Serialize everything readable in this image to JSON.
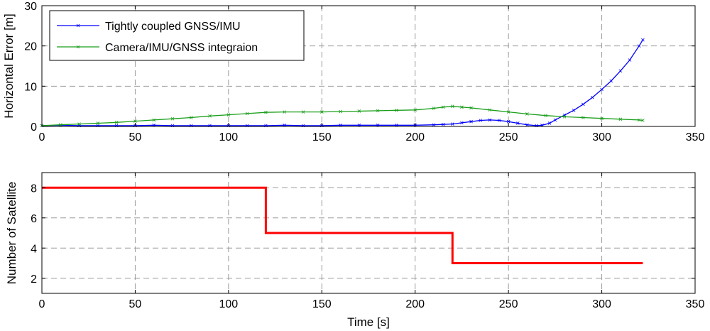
{
  "chart_data": [
    {
      "type": "line",
      "title": "",
      "xlabel": "",
      "ylabel": "Horizontal Error [m]",
      "xlim": [
        0,
        350
      ],
      "ylim": [
        0,
        30
      ],
      "xticks": [
        0,
        50,
        100,
        150,
        200,
        250,
        300,
        350
      ],
      "yticks": [
        0,
        10,
        20,
        30
      ],
      "grid": true,
      "legend_position": "top-left",
      "series": [
        {
          "name": "Tightly coupled GNSS/IMU",
          "color": "#0000ff",
          "marker": "x",
          "x": [
            0,
            10,
            20,
            30,
            40,
            50,
            60,
            70,
            80,
            90,
            100,
            110,
            120,
            130,
            140,
            150,
            160,
            170,
            180,
            190,
            200,
            210,
            215,
            220,
            225,
            230,
            235,
            240,
            245,
            250,
            255,
            260,
            265,
            268,
            272,
            275,
            280,
            285,
            290,
            295,
            300,
            305,
            310,
            315,
            320,
            322
          ],
          "y": [
            0.2,
            0.3,
            0.2,
            0.2,
            0.2,
            0.2,
            0.3,
            0.2,
            0.2,
            0.2,
            0.2,
            0.2,
            0.2,
            0.3,
            0.2,
            0.2,
            0.3,
            0.3,
            0.3,
            0.3,
            0.3,
            0.4,
            0.5,
            0.6,
            0.9,
            1.2,
            1.5,
            1.6,
            1.5,
            1.2,
            0.8,
            0.4,
            0.2,
            0.3,
            0.8,
            1.6,
            2.8,
            4.0,
            5.5,
            7.2,
            9.2,
            11.3,
            13.8,
            16.5,
            20.0,
            21.5
          ]
        },
        {
          "name": "Camera/IMU/GNSS integraion",
          "color": "#1a9e1a",
          "marker": "x",
          "x": [
            0,
            10,
            20,
            30,
            40,
            50,
            60,
            70,
            80,
            90,
            100,
            110,
            120,
            130,
            140,
            150,
            160,
            170,
            180,
            190,
            200,
            210,
            215,
            220,
            225,
            230,
            240,
            250,
            260,
            270,
            280,
            290,
            300,
            310,
            320,
            322
          ],
          "y": [
            0.2,
            0.4,
            0.6,
            0.8,
            1.0,
            1.3,
            1.6,
            1.9,
            2.2,
            2.6,
            2.9,
            3.2,
            3.5,
            3.6,
            3.6,
            3.6,
            3.7,
            3.8,
            3.9,
            4.0,
            4.1,
            4.5,
            4.8,
            5.0,
            4.8,
            4.6,
            4.1,
            3.6,
            3.1,
            2.7,
            2.4,
            2.2,
            2.0,
            1.8,
            1.6,
            1.5
          ]
        }
      ]
    },
    {
      "type": "line",
      "title": "",
      "xlabel": "Time [s]",
      "ylabel": "Number of Satellite",
      "xlim": [
        0,
        350
      ],
      "ylim": [
        1,
        9
      ],
      "xticks": [
        0,
        50,
        100,
        150,
        200,
        250,
        300,
        350
      ],
      "yticks": [
        2,
        4,
        6,
        8
      ],
      "grid": true,
      "series": [
        {
          "color": "#ff0000",
          "x": [
            0,
            120,
            120,
            220,
            220,
            322
          ],
          "y": [
            8,
            8,
            5,
            5,
            3,
            3
          ]
        }
      ]
    }
  ]
}
